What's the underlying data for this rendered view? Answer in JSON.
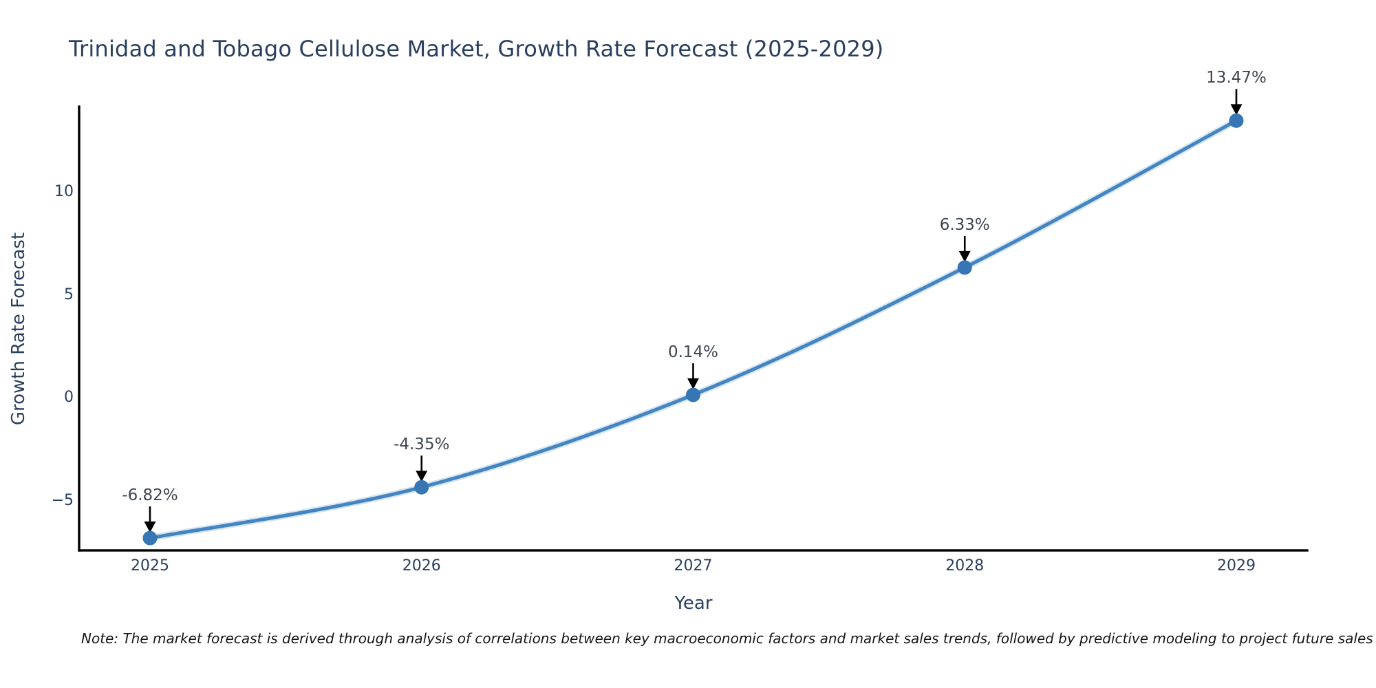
{
  "chart_data": {
    "type": "line",
    "title": "Trinidad and Tobago Cellulose Market, Growth Rate Forecast (2025-2029)",
    "xlabel": "Year",
    "ylabel": "Growth Rate Forecast",
    "categories": [
      "2025",
      "2026",
      "2027",
      "2028",
      "2029"
    ],
    "series": [
      {
        "name": "Growth Rate Forecast",
        "values": [
          -6.82,
          -4.35,
          0.14,
          6.33,
          13.47
        ]
      }
    ],
    "point_labels": [
      "-6.82%",
      "-4.35%",
      "0.14%",
      "6.33%",
      "13.47%"
    ],
    "yticks": {
      "values": [
        -5,
        0,
        5,
        10
      ],
      "labels": [
        "−5",
        "0",
        "5",
        "10"
      ]
    },
    "ylim": [
      -7.42,
      14.15
    ],
    "grid": false,
    "legend": false,
    "line_shape": "spline",
    "annotations": "value labels above each point with downward black arrows"
  },
  "note": {
    "text": "Note: The market forecast is derived through analysis of correlations between key macroeconomic factors and market sales trends, followed by predictive modeling to project future sales"
  },
  "colors": {
    "background": "#ffffff",
    "line": "#4484c0",
    "line_halo": "#9ec4e4",
    "marker": "#3776b5",
    "title_text": "#2a3f5f",
    "tick_text": "#2a3f5f",
    "axis_line": "#000000",
    "annotation_text": "#3d4551",
    "arrow": "#000000",
    "note_text": "#161616"
  }
}
